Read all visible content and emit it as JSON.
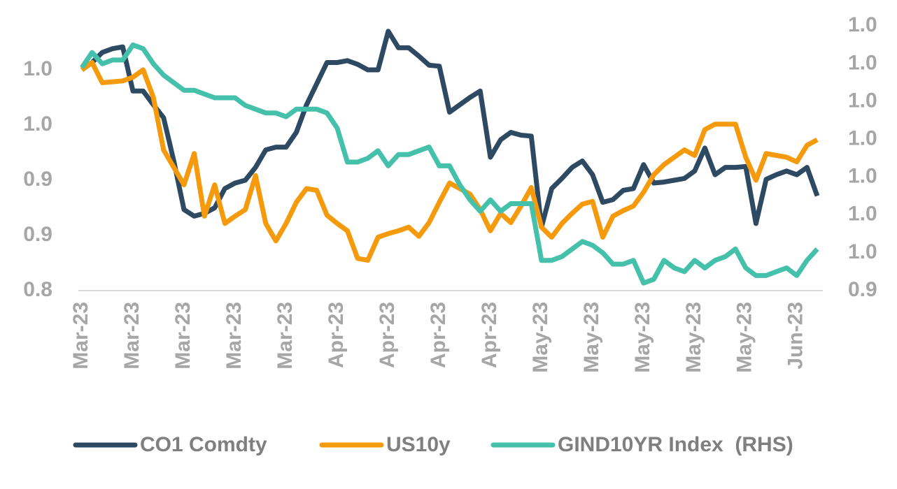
{
  "chart_data": {
    "type": "line",
    "categories": [
      "Mar-23",
      null,
      null,
      null,
      null,
      "Mar-23",
      null,
      null,
      null,
      null,
      "Mar-23",
      null,
      null,
      null,
      null,
      "Mar-23",
      null,
      null,
      null,
      null,
      "Mar-23",
      null,
      null,
      null,
      null,
      "Apr-23",
      null,
      null,
      null,
      null,
      "Apr-23",
      null,
      null,
      null,
      null,
      "Apr-23",
      null,
      null,
      null,
      null,
      "Apr-23",
      null,
      null,
      null,
      null,
      "May-23",
      null,
      null,
      null,
      null,
      "May-23",
      null,
      null,
      null,
      null,
      "May-23",
      null,
      null,
      null,
      null,
      "May-23",
      null,
      null,
      null,
      null,
      "May-23",
      null,
      null,
      null,
      null,
      "Jun-23",
      null,
      null
    ],
    "series": [
      {
        "name": "CO1 Comdty",
        "color": "#2e4a62",
        "values": [
          1.04,
          1.048,
          1.059,
          1.063,
          1.065,
          1.017,
          1.017,
          1.002,
          0.988,
          0.941,
          0.888,
          0.881,
          0.884,
          0.89,
          0.911,
          0.917,
          0.92,
          0.934,
          0.953,
          0.956,
          0.956,
          0.972,
          1.002,
          1.025,
          1.048,
          1.048,
          1.05,
          1.046,
          1.04,
          1.04,
          1.082,
          1.064,
          1.064,
          1.055,
          1.045,
          1.044,
          0.994,
          1.002,
          1.01,
          1.017,
          0.945,
          0.964,
          0.972,
          0.969,
          0.968,
          0.869,
          0.911,
          0.922,
          0.934,
          0.941,
          0.926,
          0.896,
          0.899,
          0.909,
          0.911,
          0.937,
          0.917,
          0.918,
          0.92,
          0.922,
          0.93,
          0.955,
          0.926,
          0.934,
          0.934,
          0.935,
          0.873,
          0.921,
          0.926,
          0.93,
          0.926,
          0.934,
          0.903
        ]
      },
      {
        "name": "US10y",
        "color": "#f59a0c",
        "values": [
          1.04,
          1.048,
          1.026,
          1.027,
          1.028,
          1.032,
          1.04,
          1.01,
          0.953,
          0.934,
          0.915,
          0.949,
          0.881,
          0.915,
          0.873,
          0.881,
          0.888,
          0.925,
          0.873,
          0.854,
          0.873,
          0.896,
          0.911,
          0.909,
          0.882,
          0.873,
          0.865,
          0.835,
          0.833,
          0.858,
          0.862,
          0.865,
          0.869,
          0.859,
          0.874,
          0.896,
          0.917,
          0.911,
          0.905,
          0.888,
          0.865,
          0.884,
          0.874,
          0.892,
          0.912,
          0.869,
          0.858,
          0.873,
          0.884,
          0.894,
          0.897,
          0.858,
          0.881,
          0.887,
          0.892,
          0.907,
          0.926,
          0.937,
          0.945,
          0.953,
          0.947,
          0.975,
          0.981,
          0.981,
          0.981,
          0.945,
          0.92,
          0.949,
          0.947,
          0.945,
          0.94,
          0.958,
          0.964
        ]
      },
      {
        "name": "GIND10YR Index  (RHS)",
        "color": "#45c0aa",
        "axis": "y2",
        "values": [
          0.999,
          1.003,
          1.0,
          1.001,
          1.001,
          1.005,
          1.004,
          1.0,
          0.997,
          0.995,
          0.993,
          0.993,
          0.992,
          0.991,
          0.991,
          0.991,
          0.989,
          0.988,
          0.987,
          0.987,
          0.986,
          0.988,
          0.988,
          0.988,
          0.987,
          0.983,
          0.974,
          0.974,
          0.975,
          0.977,
          0.973,
          0.976,
          0.976,
          0.977,
          0.978,
          0.973,
          0.973,
          0.968,
          0.964,
          0.961,
          0.964,
          0.961,
          0.963,
          0.963,
          0.963,
          0.948,
          0.948,
          0.949,
          0.951,
          0.953,
          0.952,
          0.95,
          0.947,
          0.947,
          0.948,
          0.942,
          0.943,
          0.948,
          0.946,
          0.945,
          0.948,
          0.946,
          0.948,
          0.949,
          0.951,
          0.946,
          0.944,
          0.944,
          0.945,
          0.946,
          0.944,
          0.948,
          0.951
        ]
      }
    ],
    "ylim": [
      0.8,
      1.1
    ],
    "yticks": [
      {
        "value": 0.8,
        "label": "0.8"
      },
      {
        "value": 0.86,
        "label": "0.9"
      },
      {
        "value": 0.92,
        "label": "0.9"
      },
      {
        "value": 0.98,
        "label": "1.0"
      },
      {
        "value": 1.04,
        "label": "1.0"
      }
    ],
    "y2lim": [
      0.94,
      1.013
    ],
    "y2ticks": [
      {
        "value": 0.94,
        "label": "0.9"
      },
      {
        "value": 0.95,
        "label": "1.0"
      },
      {
        "value": 0.96,
        "label": "1.0"
      },
      {
        "value": 0.97,
        "label": "1.0"
      },
      {
        "value": 0.98,
        "label": "1.0"
      },
      {
        "value": 0.99,
        "label": "1.0"
      },
      {
        "value": 1.0,
        "label": "1.0"
      },
      {
        "value": 1.01,
        "label": "1.0"
      }
    ],
    "legend": "bottom",
    "grid": false
  }
}
